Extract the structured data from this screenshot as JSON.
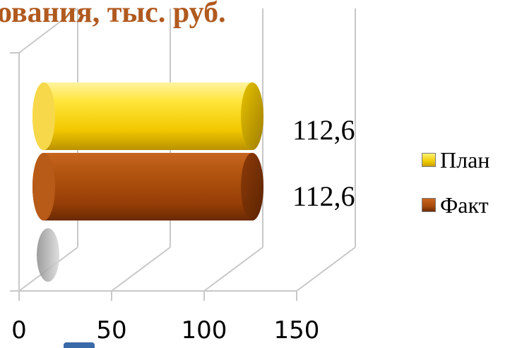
{
  "title": "ования, тыс. руб.",
  "colors": {
    "plan": "#f1cc00",
    "fact": "#a84a0c",
    "title": "#b05a1f",
    "grid": "#c8c8c8"
  },
  "chart_data": {
    "type": "bar",
    "orientation": "horizontal",
    "style": "3d-cylinder",
    "title": "ования, тыс. руб.",
    "series": [
      {
        "name": "План",
        "values": [
          112.6
        ],
        "data_label": "112,6",
        "color": "#f1cc00"
      },
      {
        "name": "Факт",
        "values": [
          112.6
        ],
        "data_label": "112,6",
        "color": "#a84a0c"
      }
    ],
    "x_ticks": [
      0,
      50,
      100,
      150
    ],
    "x_tick_labels": [
      "0",
      "50",
      "100",
      "150"
    ],
    "xlim": [
      0,
      150
    ],
    "grid": true,
    "legend_position": "right"
  }
}
